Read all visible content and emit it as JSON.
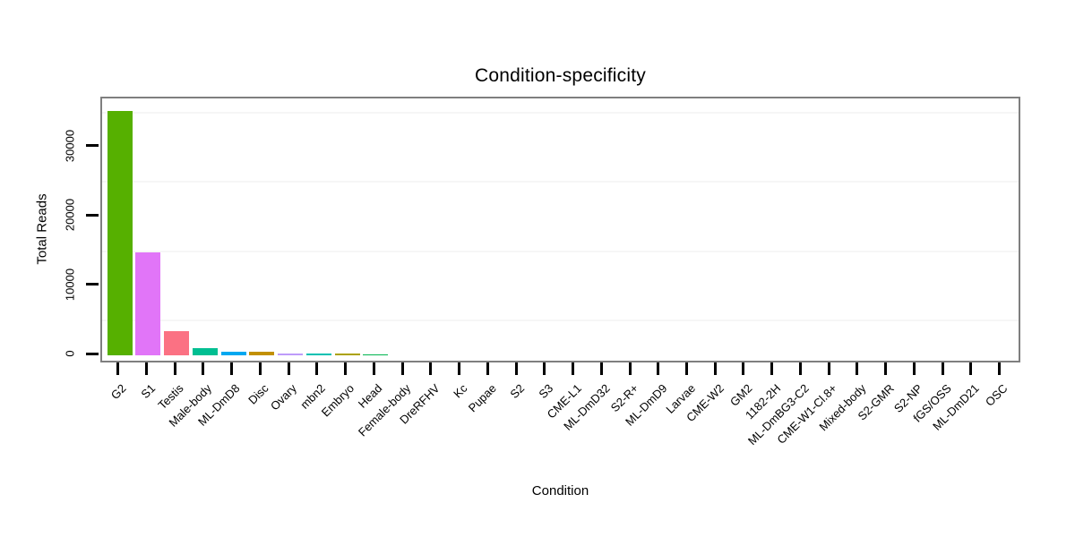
{
  "title": "Condition-specificity",
  "chart_data": {
    "type": "bar",
    "title": "Condition-specificity",
    "xlabel": "Condition",
    "ylabel": "Total Reads",
    "ylim": [
      0,
      37000
    ],
    "yticks": [
      0,
      10000,
      20000,
      30000
    ],
    "ytick_labels": [
      "0",
      "10000",
      "20000",
      "30000"
    ],
    "minor_gridlines": [
      5000,
      15000,
      25000,
      35000
    ],
    "grid": "faint minor gridlines only",
    "legend_position": "none",
    "x_label_rotation_deg": 45,
    "categories": [
      "G2",
      "S1",
      "Testis",
      "Male-body",
      "ML-DmD8",
      "Disc",
      "Ovary",
      "mbn2",
      "Embryo",
      "Head",
      "Female-body",
      "DreRFHV",
      "Kc",
      "Pupae",
      "S2",
      "S3",
      "CME-L1",
      "ML-DmD32",
      "S2-R+",
      "ML-DmD9",
      "Larvae",
      "CME-W2",
      "GM2",
      "1182-2H",
      "ML-DmBG3-C2",
      "CME-W1-Cl.8+",
      "Mixed-body",
      "S2-GMR",
      "S2-NP",
      "fGS/OSS",
      "ML-DmD21",
      "OSC"
    ],
    "values": [
      35200,
      14800,
      3450,
      1080,
      510,
      500,
      210,
      250,
      230,
      180,
      0,
      0,
      0,
      0,
      0,
      0,
      0,
      0,
      0,
      0,
      0,
      0,
      0,
      0,
      0,
      0,
      0,
      0,
      0,
      0,
      0,
      0
    ],
    "colors": [
      "#56B000",
      "#E175F8",
      "#FB7183",
      "#00BF92",
      "#00A8F0",
      "#C29000",
      "#BE9CFA",
      "#00C1B2",
      "#ACA200",
      "#00B44E",
      null,
      null,
      null,
      null,
      null,
      null,
      null,
      null,
      null,
      null,
      null,
      null,
      null,
      null,
      null,
      null,
      null,
      null,
      null,
      null,
      null,
      null
    ],
    "panel_border_color": "#7f7f7f",
    "tick_color": "#000000",
    "background_color": "#ffffff"
  }
}
